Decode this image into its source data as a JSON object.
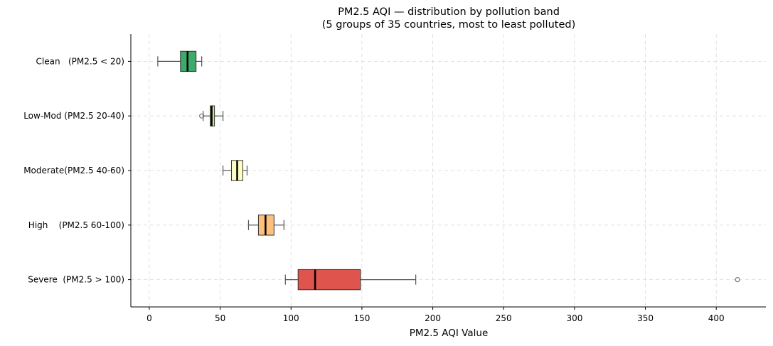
{
  "chart_data": {
    "type": "boxplot",
    "orientation": "horizontal",
    "title": "PM2.5 AQI — distribution by pollution band",
    "subtitle": "(5 groups of 35 countries, most to least polluted)",
    "xlabel": "PM2.5 AQI Value",
    "ylabel": "",
    "xlim": [
      -13,
      435
    ],
    "xticks": [
      0,
      50,
      100,
      150,
      200,
      250,
      300,
      350,
      400
    ],
    "grid": true,
    "groups": [
      {
        "label": "Clean   (PM2.5 < 20)",
        "color": "#3daa6a",
        "whisker_low": 6,
        "q1": 22,
        "median": 27,
        "q3": 33,
        "whisker_high": 37,
        "outliers": []
      },
      {
        "label": "Low-Mod (PM2.5 20-40)",
        "color": "#c7e98a",
        "whisker_low": 38,
        "q1": 43,
        "median": 44,
        "q3": 46,
        "whisker_high": 52,
        "outliers": [
          37
        ]
      },
      {
        "label": "Moderate(PM2.5 40-60)",
        "color": "#fefdc4",
        "whisker_low": 52,
        "q1": 58,
        "median": 62,
        "q3": 66,
        "whisker_high": 69,
        "outliers": []
      },
      {
        "label": "High    (PM2.5 60-100)",
        "color": "#fdbf7c",
        "whisker_low": 70,
        "q1": 77,
        "median": 82,
        "q3": 88,
        "whisker_high": 95,
        "outliers": []
      },
      {
        "label": "Severe  (PM2.5 > 100)",
        "color": "#e0544e",
        "whisker_low": 96,
        "q1": 105,
        "median": 117,
        "q3": 149,
        "whisker_high": 188,
        "outliers": [
          415
        ]
      }
    ]
  }
}
